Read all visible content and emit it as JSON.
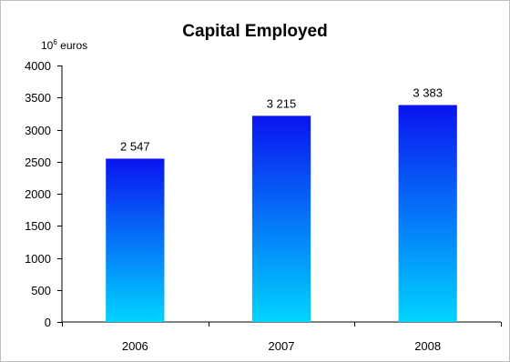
{
  "chart_data": {
    "type": "bar",
    "title": "Capital Employed",
    "unit": {
      "base": "10",
      "exponent": "6",
      "suffix": " euros"
    },
    "categories": [
      "2006",
      "2007",
      "2008"
    ],
    "values": [
      2547,
      3215,
      3383
    ],
    "data_labels": [
      "2 547",
      "3 215",
      "3 383"
    ],
    "ylim": [
      0,
      4000
    ],
    "yticks": [
      0,
      500,
      1000,
      1500,
      2000,
      2500,
      3000,
      3500,
      4000
    ],
    "xlabel": "",
    "ylabel": "",
    "grid": false,
    "legend": "none",
    "colors": {
      "bar_top": "#0a14f0",
      "bar_bottom": "#00d4ff",
      "axis": "#000000",
      "frame": "#bfbfbf"
    }
  }
}
